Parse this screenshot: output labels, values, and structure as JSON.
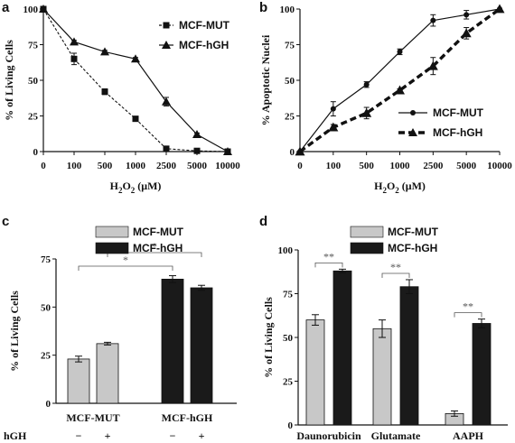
{
  "chart_data": [
    {
      "panel": "a",
      "type": "line",
      "x_categories": [
        "0",
        "100",
        "500",
        "1000",
        "2500",
        "5000",
        "10000"
      ],
      "xlabel_main": "H",
      "xlabel_sub": "2",
      "xlabel_tail": "O",
      "xlabel_sub2": "2",
      "xlabel_unit": " (μM)",
      "ylabel": "% of Living Cells",
      "ylim": [
        0,
        100
      ],
      "yticks": [
        "0",
        "25",
        "50",
        "75",
        "100"
      ],
      "legend_position": "top-right",
      "series": [
        {
          "name": "MCF-MUT",
          "line": "dashed",
          "marker": "square",
          "values": [
            100,
            65,
            42,
            23,
            2,
            0.5,
            0
          ],
          "errors": [
            0,
            4,
            2,
            1,
            1,
            0.5,
            0
          ]
        },
        {
          "name": "MCF-hGH",
          "line": "solid",
          "marker": "triangle",
          "values": [
            100,
            77,
            70,
            65,
            35,
            12,
            0
          ],
          "errors": [
            0,
            1,
            1,
            1,
            3,
            1,
            0.5
          ]
        }
      ]
    },
    {
      "panel": "b",
      "type": "line",
      "x_categories": [
        "0",
        "100",
        "500",
        "1000",
        "2500",
        "5000",
        "10000"
      ],
      "xlabel_main": "H",
      "xlabel_sub": "2",
      "xlabel_tail": "O",
      "xlabel_sub2": "2",
      "xlabel_unit": " (μM)",
      "ylabel": "% Apoptotic Nuclei",
      "ylim": [
        0,
        100
      ],
      "yticks": [
        "0",
        "25",
        "50",
        "75",
        "100"
      ],
      "legend_position": "bottom-right",
      "series": [
        {
          "name": "MCF-MUT",
          "line": "solid",
          "marker": "circle",
          "values": [
            0,
            30,
            47,
            70,
            92,
            96,
            100
          ],
          "errors": [
            0,
            5,
            2,
            2,
            4,
            3,
            0
          ]
        },
        {
          "name": "MCF-hGH",
          "line": "thick-dashed",
          "marker": "triangle",
          "values": [
            0,
            17,
            27,
            43,
            60,
            83,
            100
          ],
          "errors": [
            0,
            2,
            4,
            1,
            6,
            4,
            0
          ]
        }
      ]
    },
    {
      "panel": "c",
      "type": "bar",
      "ylabel": "% of Living Cells",
      "ylim": [
        0,
        75
      ],
      "yticks": [
        "0",
        "25",
        "50",
        "75"
      ],
      "legend_position": "top-center",
      "series_names": [
        "MCF-MUT",
        "MCF-hGH"
      ],
      "bars": [
        {
          "series": 0,
          "value": 23,
          "error": 1.5
        },
        {
          "series": 0,
          "value": 31,
          "error": 0.7
        },
        {
          "series": 1,
          "value": 64.5,
          "error": 1.8
        },
        {
          "series": 1,
          "value": 60,
          "error": 1.3
        }
      ],
      "group_labels": [
        "MCF-MUT",
        "MCF-hGH"
      ],
      "row_label": "hGH",
      "signs": [
        "−",
        "+",
        "−",
        "+"
      ],
      "significance": [
        "*",
        "*"
      ]
    },
    {
      "panel": "d",
      "type": "bar",
      "ylabel": "% of Living Cells",
      "ylim": [
        0,
        100
      ],
      "yticks": [
        "0",
        "25",
        "50",
        "75",
        "100"
      ],
      "legend_position": "top-center",
      "series_names": [
        "MCF-MUT",
        "MCF-hGH"
      ],
      "categories": [
        "Daunorubicin",
        "Glutamate",
        "AAPH"
      ],
      "series": [
        {
          "name": "MCF-MUT",
          "values": [
            60,
            55,
            6.5
          ],
          "errors": [
            3,
            5,
            1.5
          ]
        },
        {
          "name": "MCF-hGH",
          "values": [
            88,
            79,
            58
          ],
          "errors": [
            1,
            4,
            2.5
          ]
        }
      ],
      "significance": [
        "**",
        "**",
        "**"
      ]
    }
  ],
  "colors": {
    "mut_bar": "#c8c8c8",
    "hgh_bar": "#1a1a1a",
    "line": "#111111"
  }
}
